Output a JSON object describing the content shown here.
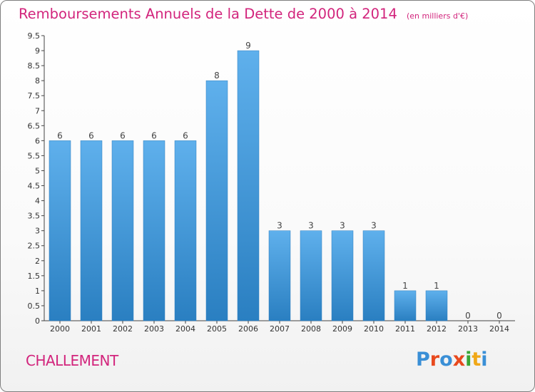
{
  "header": {
    "title": "Remboursements Annuels de la Dette de 2000 à 2014",
    "subtitle": "(en milliers d'€)"
  },
  "footer": {
    "commune": "CHALLEMENT",
    "logo_text": "Proxiti"
  },
  "colors": {
    "accent": "#d2247c",
    "bar_top": "#5fb0ec",
    "bar_bottom": "#2a7fc1",
    "logo": [
      "#3a8fd6",
      "#e8491d",
      "#3a8fd6",
      "#e8491d",
      "#3aa635",
      "#f0a818",
      "#3a8fd6"
    ]
  },
  "chart_data": {
    "type": "bar",
    "title": "Remboursements Annuels de la Dette de 2000 à 2014",
    "subtitle": "(en milliers d'€)",
    "xlabel": "",
    "ylabel": "",
    "categories": [
      "2000",
      "2001",
      "2002",
      "2003",
      "2004",
      "2005",
      "2006",
      "2007",
      "2008",
      "2009",
      "2010",
      "2011",
      "2012",
      "2013",
      "2014"
    ],
    "values": [
      6,
      6,
      6,
      6,
      6,
      8,
      9,
      3,
      3,
      3,
      3,
      1,
      1,
      0,
      0
    ],
    "data_labels": [
      "6",
      "6",
      "6",
      "6",
      "6",
      "8",
      "9",
      "3",
      "3",
      "3",
      "3",
      "1",
      "1",
      "0",
      "0"
    ],
    "ylim": [
      0,
      9.5
    ],
    "yticks": [
      0,
      0.5,
      1,
      1.5,
      2,
      2.5,
      3,
      3.5,
      4,
      4.5,
      5,
      5.5,
      6,
      6.5,
      7,
      7.5,
      8,
      8.5,
      9,
      9.5
    ],
    "ytick_labels": [
      "0",
      "0.5",
      "1",
      "1.5",
      "2",
      "2.5",
      "3",
      "3.5",
      "4",
      "4.5",
      "5",
      "5.5",
      "6",
      "6.5",
      "7",
      "7.5",
      "8",
      "8.5",
      "9",
      "9.5"
    ],
    "grid": false,
    "legend": "none"
  }
}
